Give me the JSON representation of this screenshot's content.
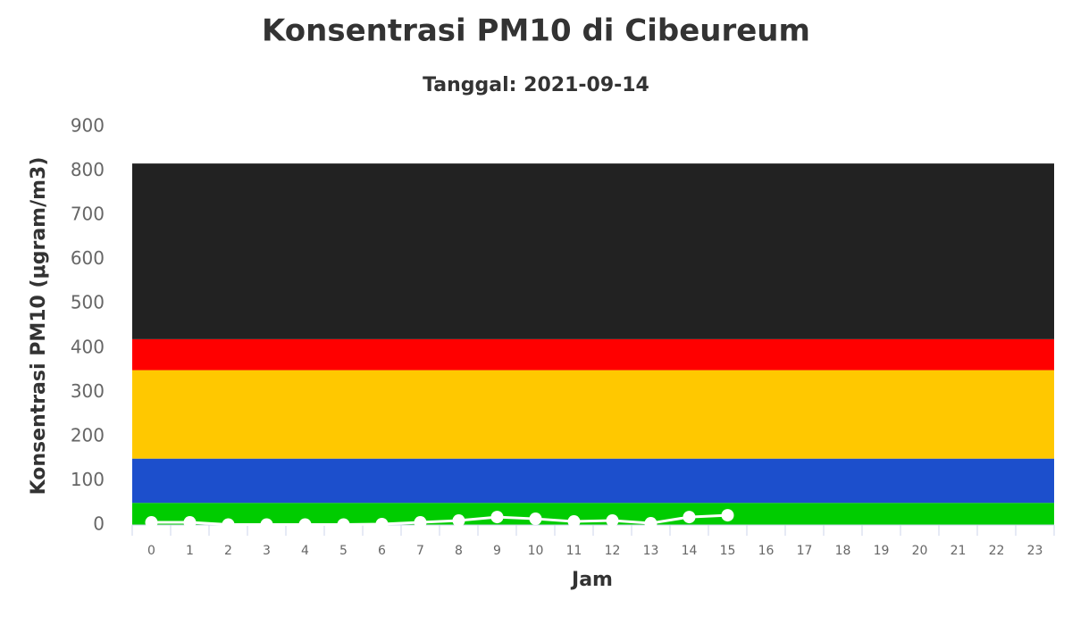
{
  "chart_data": {
    "type": "line",
    "title": "Konsentrasi PM10 di Cibeureum",
    "subtitle": "Tanggal: 2021-09-14",
    "x_label": "Jam",
    "y_label": "Konsentrasi PM10 (μgram/m3)",
    "categories": [
      "0",
      "1",
      "2",
      "3",
      "4",
      "5",
      "6",
      "7",
      "8",
      "9",
      "10",
      "11",
      "12",
      "13",
      "14",
      "15",
      "16",
      "17",
      "18",
      "19",
      "20",
      "21",
      "22",
      "23"
    ],
    "series": [
      {
        "name": "PM10",
        "color": "#ffffff",
        "values": [
          6,
          6,
          1,
          1,
          1,
          1,
          2,
          6,
          10,
          18,
          14,
          8,
          10,
          4,
          18,
          22,
          null,
          null,
          null,
          null,
          null,
          null,
          null,
          null
        ]
      }
    ],
    "bands": [
      {
        "from": 0,
        "to": 50,
        "color": "#00cc00"
      },
      {
        "from": 50,
        "to": 150,
        "color": "#1c4fcc"
      },
      {
        "from": 150,
        "to": 350,
        "color": "#ffc800"
      },
      {
        "from": 350,
        "to": 420,
        "color": "#ff0000"
      },
      {
        "from": 420,
        "to": 817,
        "color": "#222222"
      }
    ],
    "ylim": [
      0,
      900
    ],
    "yticks": [
      0,
      100,
      200,
      300,
      400,
      500,
      600,
      700,
      800,
      900
    ]
  }
}
